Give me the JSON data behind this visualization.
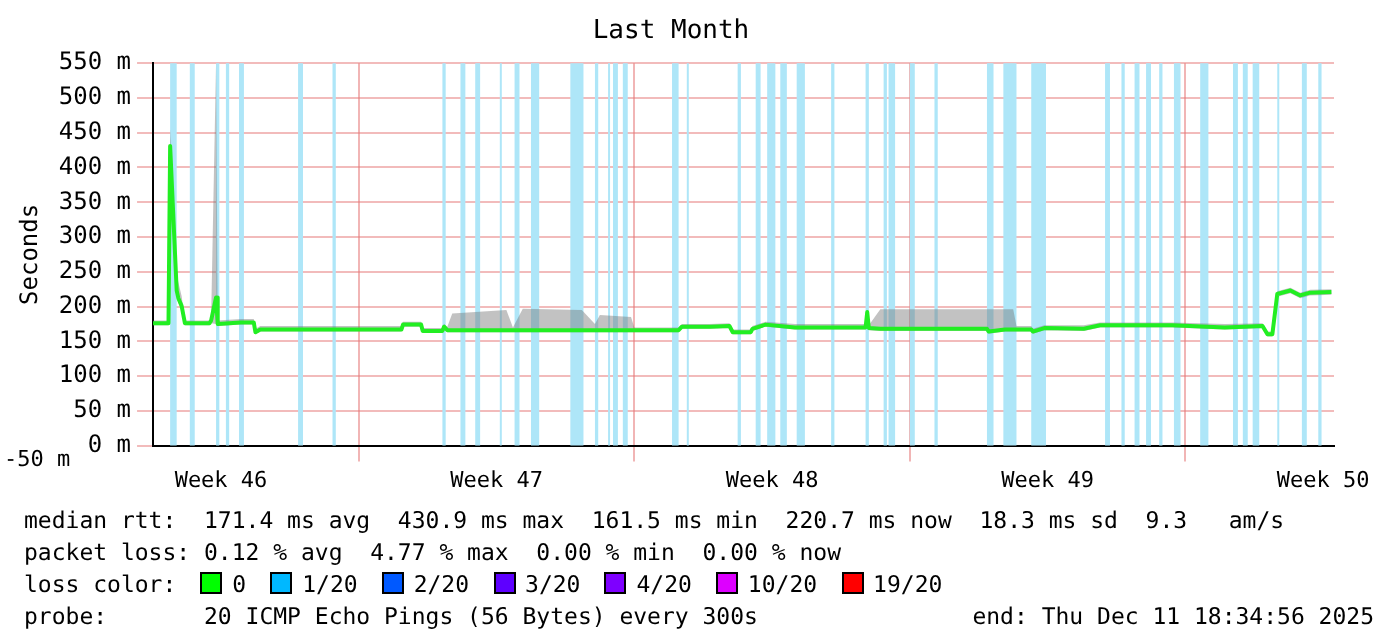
{
  "chart_data": {
    "type": "line",
    "title": "Last Month",
    "ylabel": "Seconds",
    "xlim": [
      "2025-11-11T18:35",
      "2025-12-11T18:35"
    ],
    "xticks": [
      {
        "value": "2025-11-13T12:00",
        "label": "Week 46"
      },
      {
        "value": "2025-11-17T00:00",
        "label": null
      },
      {
        "value": "2025-11-20T12:00",
        "label": "Week 47"
      },
      {
        "value": "2025-11-24T00:00",
        "label": null
      },
      {
        "value": "2025-11-27T12:00",
        "label": "Week 48"
      },
      {
        "value": "2025-12-01T00:00",
        "label": null
      },
      {
        "value": "2025-12-04T12:00",
        "label": "Week 49"
      },
      {
        "value": "2025-12-08T00:00",
        "label": null
      },
      {
        "value": "2025-12-11T12:00",
        "label": "Week 50"
      }
    ],
    "ylim": [
      0,
      550
    ],
    "yticks": [
      {
        "value": 0,
        "label": "0 m"
      },
      {
        "value": 50,
        "label": "50 m"
      },
      {
        "value": 100,
        "label": "100 m"
      },
      {
        "value": 150,
        "label": "150 m"
      },
      {
        "value": 200,
        "label": "200 m"
      },
      {
        "value": 250,
        "label": "250 m"
      },
      {
        "value": 300,
        "label": "300 m"
      },
      {
        "value": 350,
        "label": "350 m"
      },
      {
        "value": 400,
        "label": "400 m"
      },
      {
        "value": 450,
        "label": "450 m"
      },
      {
        "value": 500,
        "label": "500 m"
      },
      {
        "value": 550,
        "label": "550 m"
      }
    ],
    "grid": true,
    "series": [
      {
        "color": "#22ee22",
        "x": [
          "2025-11-11T18:35",
          "2025-11-12T04:00",
          "2025-11-12T05:00",
          "2025-11-12T09:00",
          "2025-11-12T10:00",
          "2025-11-12T12:00",
          "2025-11-12T14:00",
          "2025-11-13T05:00",
          "2025-11-13T06:00",
          "2025-11-13T09:00",
          "2025-11-13T10:00",
          "2025-11-14T00:00",
          "2025-11-14T08:00",
          "2025-11-14T09:00",
          "2025-11-14T12:00",
          "2025-11-18T02:00",
          "2025-11-18T03:00",
          "2025-11-18T14:00",
          "2025-11-18T15:00",
          "2025-11-19T03:00",
          "2025-11-19T04:00",
          "2025-11-19T06:00",
          "2025-11-19T09:00",
          "2025-11-20T18:00",
          "2025-11-20T22:00",
          "2025-11-21T04:00",
          "2025-11-22T16:00",
          "2025-11-23T00:00",
          "2025-11-23T03:00",
          "2025-11-23T22:00",
          "2025-11-24T00:00",
          "2025-11-25T03:00",
          "2025-11-25T05:00",
          "2025-11-25T22:00",
          "2025-11-26T10:00",
          "2025-11-26T12:00",
          "2025-11-26T23:00",
          "2025-11-27T00:00",
          "2025-11-27T08:00",
          "2025-11-28T02:00",
          "2025-11-29T21:00",
          "2025-11-29T22:00",
          "2025-11-29T23:00",
          "2025-11-30T06:00",
          "2025-12-01T00:00",
          "2025-12-02T23:00",
          "2025-12-03T00:00",
          "2025-12-03T10:00",
          "2025-12-03T15:00",
          "2025-12-03T17:00",
          "2025-12-04T02:00",
          "2025-12-04T03:00",
          "2025-12-04T10:00",
          "2025-12-05T10:00",
          "2025-12-05T20:00",
          "2025-12-07T16:00",
          "2025-12-09T00:00",
          "2025-12-09T23:00",
          "2025-12-10T02:00",
          "2025-12-10T05:00",
          "2025-12-10T08:00",
          "2025-12-10T16:00",
          "2025-12-10T22:00",
          "2025-12-11T04:00",
          "2025-12-11T17:00"
        ],
        "values": [
          176,
          176,
          431,
          223,
          212,
          201,
          176,
          176,
          180,
          213,
          175,
          177,
          177,
          163,
          167,
          167,
          174,
          174,
          165,
          165,
          171,
          166,
          166,
          166,
          166,
          166,
          166,
          166,
          166,
          166,
          166,
          166,
          171,
          171,
          172,
          163,
          163,
          168,
          174,
          170,
          170,
          192,
          169,
          168,
          168,
          168,
          164,
          167,
          167,
          167,
          167,
          164,
          169,
          168,
          173,
          173,
          170,
          172,
          160,
          160,
          218,
          223,
          216,
          220,
          221
        ],
        "lower": [
          173,
          173,
          420,
          215,
          205,
          195,
          173,
          173,
          176,
          175,
          172,
          174,
          174,
          160,
          164,
          164,
          171,
          171,
          162,
          162,
          168,
          163,
          163,
          163,
          163,
          163,
          163,
          163,
          163,
          163,
          163,
          163,
          168,
          168,
          169,
          160,
          160,
          165,
          171,
          167,
          167,
          170,
          166,
          165,
          165,
          165,
          161,
          164,
          164,
          164,
          164,
          161,
          166,
          165,
          170,
          170,
          167,
          169,
          157,
          157,
          214,
          219,
          212,
          216,
          217
        ],
        "upper": [
          180,
          180,
          455,
          245,
          235,
          215,
          180,
          180,
          185,
          550,
          180,
          182,
          182,
          168,
          172,
          172,
          178,
          178,
          169,
          169,
          175,
          171,
          190,
          195,
          170,
          197,
          195,
          175,
          188,
          185,
          170,
          170,
          175,
          175,
          176,
          167,
          167,
          172,
          178,
          175,
          175,
          195,
          173,
          196,
          196,
          196,
          196,
          196,
          196,
          172,
          172,
          168,
          173,
          173,
          177,
          177,
          175,
          176,
          164,
          164,
          222,
          227,
          220,
          224,
          225
        ]
      }
    ],
    "bands": [
      {
        "axis": "x",
        "from": "2025-11-12T05:00",
        "to": "2025-11-12T09:00",
        "color": "#aee6f8"
      },
      {
        "axis": "x",
        "from": "2025-11-12T17:00",
        "to": "2025-11-12T20:00",
        "color": "#aee6f8"
      },
      {
        "axis": "x",
        "from": "2025-11-13T09:00",
        "to": "2025-11-13T11:00",
        "color": "#aee6f8"
      },
      {
        "axis": "x",
        "from": "2025-11-13T15:00",
        "to": "2025-11-13T17:00",
        "color": "#aee6f8"
      },
      {
        "axis": "x",
        "from": "2025-11-13T23:00",
        "to": "2025-11-14T02:00",
        "color": "#aee6f8"
      },
      {
        "axis": "x",
        "from": "2025-11-15T11:00",
        "to": "2025-11-15T14:00",
        "color": "#aee6f8"
      },
      {
        "axis": "x",
        "from": "2025-11-16T08:00",
        "to": "2025-11-16T10:00",
        "color": "#aee6f8"
      },
      {
        "axis": "x",
        "from": "2025-11-19T03:00",
        "to": "2025-11-19T05:00",
        "color": "#aee6f8"
      },
      {
        "axis": "x",
        "from": "2025-11-19T14:00",
        "to": "2025-11-19T17:00",
        "color": "#aee6f8"
      },
      {
        "axis": "x",
        "from": "2025-11-19T23:00",
        "to": "2025-11-20T02:00",
        "color": "#aee6f8"
      },
      {
        "axis": "x",
        "from": "2025-11-20T14:00",
        "to": "2025-11-20T15:00",
        "color": "#aee6f8"
      },
      {
        "axis": "x",
        "from": "2025-11-20T23:00",
        "to": "2025-11-21T02:00",
        "color": "#aee6f8"
      },
      {
        "axis": "x",
        "from": "2025-11-21T09:00",
        "to": "2025-11-21T14:00",
        "color": "#aee6f8"
      },
      {
        "axis": "x",
        "from": "2025-11-22T09:00",
        "to": "2025-11-22T17:00",
        "color": "#aee6f8"
      },
      {
        "axis": "x",
        "from": "2025-11-23T00:00",
        "to": "2025-11-23T02:00",
        "color": "#aee6f8"
      },
      {
        "axis": "x",
        "from": "2025-11-23T08:00",
        "to": "2025-11-23T09:00",
        "color": "#aee6f8"
      },
      {
        "axis": "x",
        "from": "2025-11-23T11:00",
        "to": "2025-11-23T14:00",
        "color": "#aee6f8"
      },
      {
        "axis": "x",
        "from": "2025-11-23T17:00",
        "to": "2025-11-23T20:00",
        "color": "#aee6f8"
      },
      {
        "axis": "x",
        "from": "2025-11-24T23:00",
        "to": "2025-11-25T03:00",
        "color": "#aee6f8"
      },
      {
        "axis": "x",
        "from": "2025-11-25T08:00",
        "to": "2025-11-25T09:00",
        "color": "#aee6f8"
      },
      {
        "axis": "x",
        "from": "2025-11-26T15:00",
        "to": "2025-11-26T17:00",
        "color": "#aee6f8"
      },
      {
        "axis": "x",
        "from": "2025-11-27T02:00",
        "to": "2025-11-27T05:00",
        "color": "#aee6f8"
      },
      {
        "axis": "x",
        "from": "2025-11-27T09:00",
        "to": "2025-11-27T14:00",
        "color": "#aee6f8"
      },
      {
        "axis": "x",
        "from": "2025-11-27T17:00",
        "to": "2025-11-27T21:00",
        "color": "#aee6f8"
      },
      {
        "axis": "x",
        "from": "2025-11-28T03:00",
        "to": "2025-11-28T08:00",
        "color": "#aee6f8"
      },
      {
        "axis": "x",
        "from": "2025-11-29T00:00",
        "to": "2025-11-29T02:00",
        "color": "#aee6f8"
      },
      {
        "axis": "x",
        "from": "2025-11-29T21:00",
        "to": "2025-11-29T23:00",
        "color": "#aee6f8"
      },
      {
        "axis": "x",
        "from": "2025-11-30T08:00",
        "to": "2025-11-30T10:00",
        "color": "#aee6f8"
      },
      {
        "axis": "x",
        "from": "2025-11-30T11:00",
        "to": "2025-11-30T15:00",
        "color": "#aee6f8"
      },
      {
        "axis": "x",
        "from": "2025-12-01T00:00",
        "to": "2025-12-01T03:00",
        "color": "#aee6f8"
      },
      {
        "axis": "x",
        "from": "2025-12-01T15:00",
        "to": "2025-12-01T17:00",
        "color": "#aee6f8"
      },
      {
        "axis": "x",
        "from": "2025-12-02T23:00",
        "to": "2025-12-03T03:00",
        "color": "#aee6f8"
      },
      {
        "axis": "x",
        "from": "2025-12-03T09:00",
        "to": "2025-12-03T17:00",
        "color": "#aee6f8"
      },
      {
        "axis": "x",
        "from": "2025-12-04T02:00",
        "to": "2025-12-04T11:00",
        "color": "#aee6f8"
      },
      {
        "axis": "x",
        "from": "2025-12-05T23:00",
        "to": "2025-12-06T02:00",
        "color": "#aee6f8"
      },
      {
        "axis": "x",
        "from": "2025-12-06T09:00",
        "to": "2025-12-06T11:00",
        "color": "#aee6f8"
      },
      {
        "axis": "x",
        "from": "2025-12-06T17:00",
        "to": "2025-12-06T20:00",
        "color": "#aee6f8"
      },
      {
        "axis": "x",
        "from": "2025-12-07T00:00",
        "to": "2025-12-07T03:00",
        "color": "#aee6f8"
      },
      {
        "axis": "x",
        "from": "2025-12-07T08:00",
        "to": "2025-12-07T10:00",
        "color": "#aee6f8"
      },
      {
        "axis": "x",
        "from": "2025-12-07T17:00",
        "to": "2025-12-07T21:00",
        "color": "#aee6f8"
      },
      {
        "axis": "x",
        "from": "2025-12-08T09:00",
        "to": "2025-12-08T14:00",
        "color": "#aee6f8"
      },
      {
        "axis": "x",
        "from": "2025-12-09T05:00",
        "to": "2025-12-09T08:00",
        "color": "#aee6f8"
      },
      {
        "axis": "x",
        "from": "2025-12-09T11:00",
        "to": "2025-12-09T14:00",
        "color": "#aee6f8"
      },
      {
        "axis": "x",
        "from": "2025-12-09T17:00",
        "to": "2025-12-09T21:00",
        "color": "#aee6f8"
      },
      {
        "axis": "x",
        "from": "2025-12-10T08:00",
        "to": "2025-12-10T09:00",
        "color": "#aee6f8"
      },
      {
        "axis": "x",
        "from": "2025-12-10T23:00",
        "to": "2025-12-11T02:00",
        "color": "#aee6f8"
      },
      {
        "axis": "x",
        "from": "2025-12-11T09:00",
        "to": "2025-12-11T11:00",
        "color": "#aee6f8"
      }
    ],
    "annotations": [
      "median rtt:  171.4 ms avg  430.9 ms max  161.5 ms min  220.7 ms now  18.3 ms sd  9.3   am/s",
      "packet loss: 0.12 % avg  4.77 % max  0.00 % min  0.00 % now",
      "loss color:",
      "0",
      "1/20",
      "2/20",
      "3/20",
      "4/20",
      "10/20",
      "19/20",
      "probe:       20 ICMP Echo Pings (56 Bytes) every 300s",
      "end: Thu Dec 11 18:34:56 2025",
      "-50 m"
    ]
  }
}
